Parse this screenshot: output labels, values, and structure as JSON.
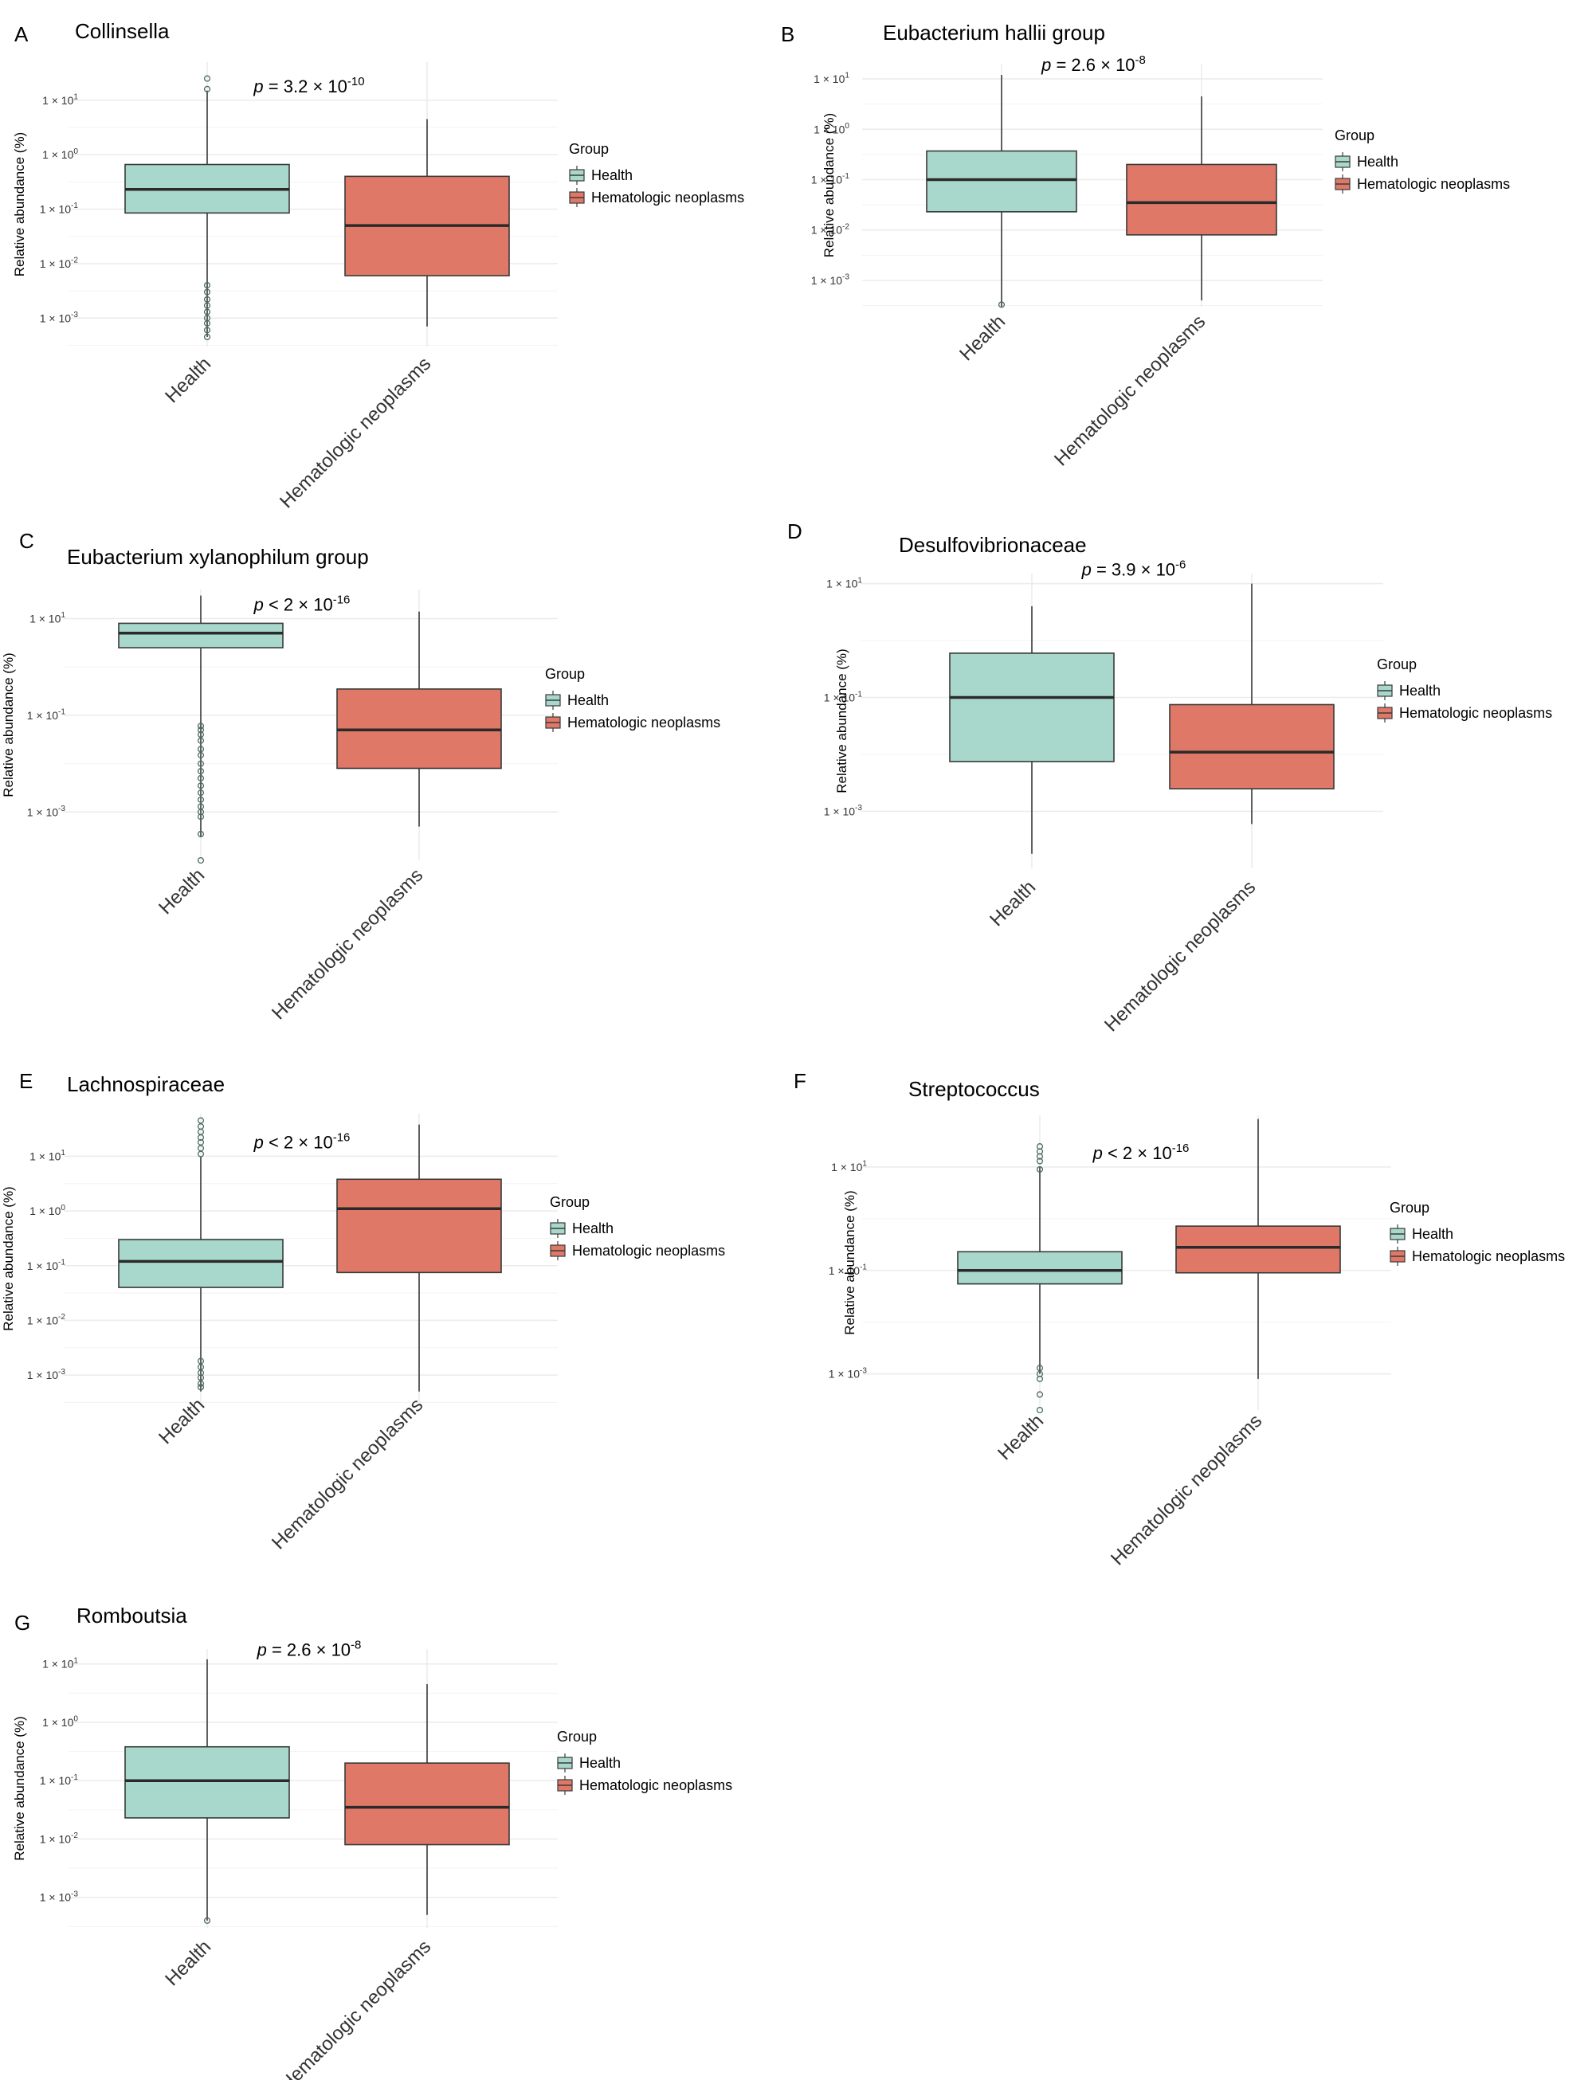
{
  "figure": {
    "legend_title": "Group",
    "ylabel": "Relative abundance (%)",
    "colors": {
      "health": "#a8d8cb",
      "neoplasm": "#e07868",
      "outline": "#3a3a3a",
      "grid": "#ebebeb",
      "text": "#000000",
      "tick_text": "#333333"
    }
  },
  "chart_data": [
    {
      "panel": "A",
      "title": "Collinsella",
      "type": "boxplot",
      "yscale": "log10",
      "ylim": [
        0.0003,
        50
      ],
      "yticks": [
        10,
        1,
        0.1,
        0.01,
        0.001
      ],
      "ytick_labels": [
        "1 × 10^1",
        "1 × 10^0",
        "1 × 10^-1",
        "1 × 10^-2",
        "1 × 10^-3"
      ],
      "p_label": {
        "relation": "=",
        "mantissa": "3.2",
        "exponent": "-10"
      },
      "categories": [
        "Health",
        "Hematologic neoplasms"
      ],
      "series": [
        {
          "name": "Health",
          "min": 0.00045,
          "q1": 0.085,
          "median": 0.23,
          "q3": 0.66,
          "max": 15,
          "outliers": [
            25,
            16,
            0.004,
            0.003,
            0.0022,
            0.0017,
            0.0013,
            0.001,
            0.0008,
            0.0006,
            0.00045
          ]
        },
        {
          "name": "Hematologic neoplasms",
          "min": 0.0007,
          "q1": 0.006,
          "median": 0.05,
          "q3": 0.4,
          "max": 4.5,
          "outliers": []
        }
      ]
    },
    {
      "panel": "B",
      "title": "Eubacterium hallii group",
      "type": "boxplot",
      "yscale": "log10",
      "ylim": [
        0.0003,
        20
      ],
      "yticks": [
        10,
        1,
        0.1,
        0.01,
        0.001
      ],
      "ytick_labels": [
        "1 × 10^1",
        "1 × 10^0",
        "1 × 10^-1",
        "1 × 10^-2",
        "1 × 10^-3"
      ],
      "p_label": {
        "relation": "=",
        "mantissa": "2.6",
        "exponent": "-8"
      },
      "categories": [
        "Health",
        "Hematologic neoplasms"
      ],
      "series": [
        {
          "name": "Health",
          "min": 0.0003,
          "q1": 0.023,
          "median": 0.1,
          "q3": 0.37,
          "max": 12,
          "outliers": [
            0.00033
          ]
        },
        {
          "name": "Hematologic neoplasms",
          "min": 0.0004,
          "q1": 0.008,
          "median": 0.035,
          "q3": 0.2,
          "max": 4.5,
          "outliers": []
        }
      ]
    },
    {
      "panel": "C",
      "title": "Eubacterium xylanophilum group",
      "type": "boxplot",
      "yscale": "log10",
      "ylim": [
        0.0001,
        40
      ],
      "yticks": [
        10,
        0.1,
        0.001
      ],
      "ytick_labels": [
        "1 × 10^1",
        "1 × 10^-1",
        "1 × 10^-3"
      ],
      "p_label": {
        "relation": "<",
        "mantissa": "2",
        "exponent": "-16"
      },
      "categories": [
        "Health",
        "Hematologic neoplasms"
      ],
      "series": [
        {
          "name": "Health",
          "min": 0.0003,
          "q1": 2.5,
          "median": 5,
          "q3": 8,
          "max": 30,
          "outliers": [
            0.06,
            0.05,
            0.04,
            0.03,
            0.02,
            0.015,
            0.01,
            0.007,
            0.005,
            0.0035,
            0.0025,
            0.0018,
            0.0013,
            0.001,
            0.0008,
            0.00035,
            0.0001
          ]
        },
        {
          "name": "Hematologic neoplasms",
          "min": 0.0005,
          "q1": 0.008,
          "median": 0.05,
          "q3": 0.35,
          "max": 14,
          "outliers": []
        }
      ]
    },
    {
      "panel": "D",
      "title": "Desulfovibrionaceae",
      "type": "boxplot",
      "yscale": "log10",
      "ylim": [
        0.0001,
        15
      ],
      "yticks": [
        10,
        0.1,
        0.001
      ],
      "ytick_labels": [
        "1 × 10^1",
        "1 × 10^-1",
        "1 × 10^-3"
      ],
      "p_label": {
        "relation": "=",
        "mantissa": "3.9",
        "exponent": "-6"
      },
      "categories": [
        "Health",
        "Hematologic neoplasms"
      ],
      "series": [
        {
          "name": "Health",
          "min": 0.00018,
          "q1": 0.0075,
          "median": 0.1,
          "q3": 0.6,
          "max": 4,
          "outliers": []
        },
        {
          "name": "Hematologic neoplasms",
          "min": 0.0006,
          "q1": 0.0025,
          "median": 0.011,
          "q3": 0.075,
          "max": 10,
          "outliers": []
        }
      ]
    },
    {
      "panel": "E",
      "title": "Lachnospiraceae",
      "type": "boxplot",
      "yscale": "log10",
      "ylim": [
        0.0003,
        60
      ],
      "yticks": [
        10,
        1,
        0.1,
        0.01,
        0.001
      ],
      "ytick_labels": [
        "1 × 10^1",
        "1 × 10^0",
        "1 × 10^-1",
        "1 × 10^-2",
        "1 × 10^-3"
      ],
      "p_label": {
        "relation": "<",
        "mantissa": "2",
        "exponent": "-16"
      },
      "categories": [
        "Health",
        "Hematologic neoplasms"
      ],
      "series": [
        {
          "name": "Health",
          "min": 0.0005,
          "q1": 0.04,
          "median": 0.12,
          "q3": 0.3,
          "max": 10,
          "outliers": [
            45,
            35,
            28,
            22,
            18,
            14,
            11,
            0.0018,
            0.0014,
            0.0011,
            0.0009,
            0.0007,
            0.0006
          ]
        },
        {
          "name": "Hematologic neoplasms",
          "min": 0.0005,
          "q1": 0.075,
          "median": 1.1,
          "q3": 3.8,
          "max": 38,
          "outliers": []
        }
      ]
    },
    {
      "panel": "F",
      "title": "Streptococcus",
      "type": "boxplot",
      "yscale": "log10",
      "ylim": [
        0.0002,
        100
      ],
      "yticks": [
        10,
        0.1,
        0.001
      ],
      "ytick_labels": [
        "1 × 10^1",
        "1 × 10^-1",
        "1 × 10^-3"
      ],
      "p_label": {
        "relation": "<",
        "mantissa": "2",
        "exponent": "-16"
      },
      "categories": [
        "Health",
        "Hematologic neoplasms"
      ],
      "series": [
        {
          "name": "Health",
          "min": 0.001,
          "q1": 0.055,
          "median": 0.1,
          "q3": 0.23,
          "max": 10,
          "outliers": [
            25,
            20,
            16,
            13,
            9,
            0.0013,
            0.001,
            0.0008,
            0.0004,
            0.0002
          ]
        },
        {
          "name": "Hematologic neoplasms",
          "min": 0.0008,
          "q1": 0.09,
          "median": 0.28,
          "q3": 0.72,
          "max": 85,
          "outliers": []
        }
      ]
    },
    {
      "panel": "G",
      "title": "Romboutsia",
      "type": "boxplot",
      "yscale": "log10",
      "ylim": [
        0.0003,
        18
      ],
      "yticks": [
        10,
        1,
        0.1,
        0.01,
        0.001
      ],
      "ytick_labels": [
        "1 × 10^1",
        "1 × 10^0",
        "1 × 10^-1",
        "1 × 10^-2",
        "1 × 10^-3"
      ],
      "p_label": {
        "relation": "=",
        "mantissa": "2.6",
        "exponent": "-8"
      },
      "categories": [
        "Health",
        "Hematologic neoplasms"
      ],
      "series": [
        {
          "name": "Health",
          "min": 0.0004,
          "q1": 0.023,
          "median": 0.1,
          "q3": 0.38,
          "max": 12,
          "outliers": [
            0.0004
          ]
        },
        {
          "name": "Hematologic neoplasms",
          "min": 0.0005,
          "q1": 0.008,
          "median": 0.035,
          "q3": 0.2,
          "max": 4.5,
          "outliers": []
        }
      ]
    }
  ]
}
